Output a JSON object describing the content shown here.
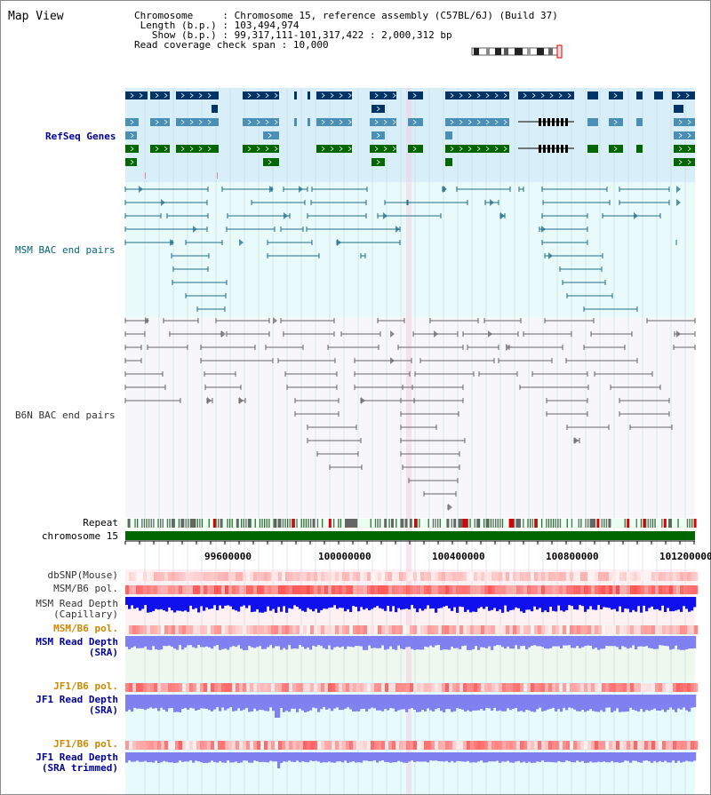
{
  "title": "Map View",
  "info": {
    "chromosome_key": "Chromosome",
    "chromosome_val": "Chromosome 15, reference assembly (C57BL/6J) (Build 37)",
    "length_key": "Length (b.p.)",
    "length_val": "103,494,974",
    "show_key": "Show (b.p.)",
    "show_val": "99,317,111-101,317,422 : 2,000,312 bp",
    "coverage_key": "Read coverage check span",
    "coverage_val": "10,000"
  },
  "tracks": {
    "refseq": "RefSeq Genes",
    "msm_bac": "MSM BAC end pairs",
    "b6n_bac": "B6N BAC end pairs",
    "repeat": "Repeat",
    "chromosome": "chromosome 15",
    "dbsnp": "dbSNP(Mouse)",
    "msm_b6_pol_1": "MSM/B6 pol.",
    "msm_depth_cap_1": "MSM Read Depth",
    "msm_depth_cap_2": "(Capillary)",
    "msm_b6_pol_2": "MSM/B6 pol.",
    "msm_depth_sra_1": "MSM Read Depth",
    "msm_depth_sra_2": "(SRA)",
    "jf1_pol_1": "JF1/B6 pol.",
    "jf1_depth_1": "JF1 Read Depth",
    "jf1_depth_2": "(SRA)",
    "jf1_pol_2": "JF1/B6 pol.",
    "jf1_trim_1": "JF1 Read Depth",
    "jf1_trim_2": "(SRA trimmed)"
  },
  "axis_ticks": [
    "99600000",
    "100000000",
    "100400000",
    "100800000",
    "101200000"
  ],
  "colors": {
    "refseq_dark": "#003366",
    "refseq_mid": "#4a8fb5",
    "refseq_green": "#006600",
    "msm_bac": "#1f6f8b",
    "b6n_bac": "#666666",
    "label_blue": "#000099",
    "label_teal": "#006677",
    "label_orange": "#cc8800",
    "depth_dark": "#1010ee",
    "depth_light": "#8080f0"
  }
}
